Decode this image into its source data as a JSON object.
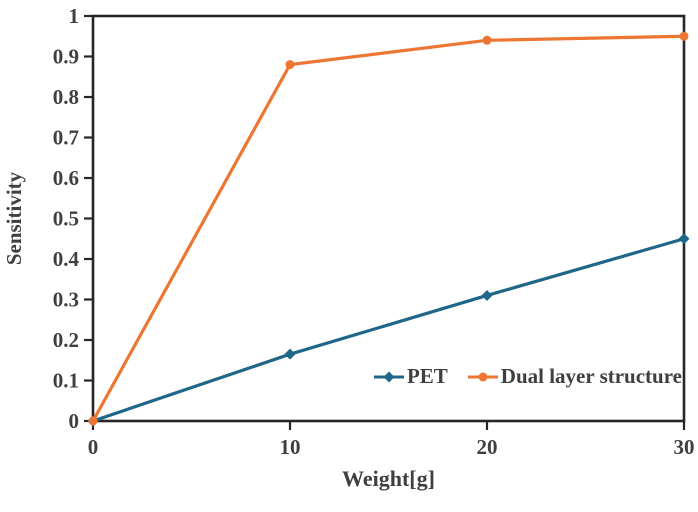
{
  "figure": {
    "background": "#ffffff",
    "text_color": "#3F3F3F",
    "axis_color": "#262626"
  },
  "chart_data": {
    "type": "line",
    "title": "",
    "xlabel": "Weight[g]",
    "ylabel": "Sensitivity",
    "x": [
      0,
      10,
      20,
      30
    ],
    "xlim": [
      0,
      30
    ],
    "ylim": [
      0,
      1
    ],
    "xticks": [
      0,
      10,
      20,
      30
    ],
    "yticks": [
      0,
      0.1,
      0.2,
      0.3,
      0.4,
      0.5,
      0.6,
      0.7,
      0.8,
      0.9,
      1
    ],
    "grid": false,
    "legend_position": "inside-bottom-right",
    "series": [
      {
        "name": "PET",
        "color": "#1F6688",
        "marker": "diamond",
        "values": [
          0,
          0.165,
          0.31,
          0.45
        ]
      },
      {
        "name": "Dual layer structure",
        "color": "#ED7633",
        "marker": "circle",
        "values": [
          0,
          0.88,
          0.94,
          0.95
        ]
      }
    ]
  }
}
